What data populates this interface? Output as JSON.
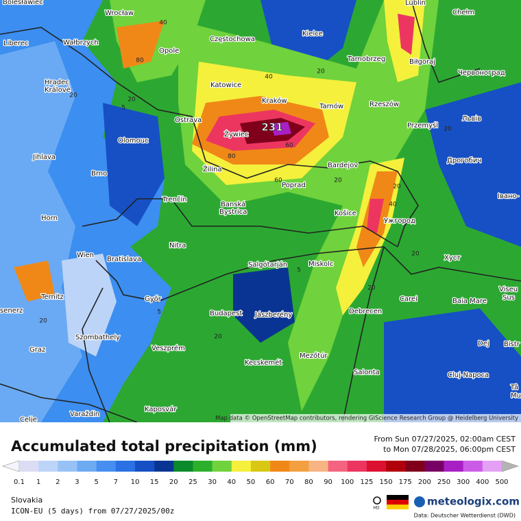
{
  "map": {
    "cities": [
      "Bolesławiec",
      "Wrocław",
      "Lublin",
      "Chełm",
      "Liberec",
      "Wałbrzych",
      "Opole",
      "Częstochowa",
      "Kielce",
      "Tarnobrzeg",
      "Biłgoraj",
      "Червоноград",
      "Hradec",
      "Králové",
      "Katowice",
      "Kraków",
      "Tarnów",
      "Rzeszów",
      "Przemyśl",
      "Львів",
      "Ostrava",
      "Olomouc",
      "Żywiec",
      "Jihlava",
      "Дрогобич",
      "Bardejov",
      "Brno",
      "Žilina",
      "Poprad",
      "Trenčín",
      "Banská",
      "Bystrica",
      "Košice",
      "Ужгород",
      "Івано-",
      "Horn",
      "Nitra",
      "Wien",
      "Bratislava",
      "Salgótarján",
      "Miskolc",
      "Хуст",
      "Ternitz",
      "Győr",
      "Carei",
      "Baia Mare",
      "Viseu",
      "Sus",
      "Budapest",
      "Jászberény",
      "Debrecen",
      "Szombathely",
      "Dej",
      "Bistr",
      "Veszprém",
      "Graz",
      "Mezőtúr",
      "Kecskemét",
      "Salonta",
      "Cluj-Napoca",
      "Tâ",
      "Mu",
      "Kaposvár",
      "Varaždin",
      "Celje",
      "senerz"
    ],
    "max_label": 231,
    "contour_labels": [
      40,
      80,
      20,
      5,
      20,
      60,
      40,
      20,
      80,
      60,
      20,
      20,
      40,
      20,
      5,
      20,
      20,
      5,
      20,
      20
    ],
    "attribution": "Map data © OpenStreetMap contributors, rendering GIScience Research Group @ Heidelberg University"
  },
  "footer": {
    "title": "Accumulated total precipitation (mm)",
    "period_from": "From Sun 07/27/2025, 02:00am CEST",
    "period_to": "to Mon 07/28/2025, 06:00pm CEST",
    "region": "Slovakia",
    "model": "ICON-EU (5 days) from 07/27/2025/00z",
    "brand": "meteologix.com",
    "hd": "HD",
    "source": "Data: Deutscher Wetterdienst (DWD)"
  },
  "legend": {
    "values": [
      0.1,
      1,
      2,
      3,
      5,
      7,
      10,
      15,
      20,
      25,
      30,
      40,
      50,
      60,
      70,
      80,
      90,
      100,
      125,
      150,
      175,
      200,
      250,
      300,
      400,
      500
    ],
    "under_color": "#f4f4fc",
    "over_color": "#b4b4b4",
    "colors": [
      "#dcdcf4",
      "#bcd4f8",
      "#96c2f6",
      "#6eaaf2",
      "#468ef0",
      "#2a72e4",
      "#1650c4",
      "#0a3494",
      "#0a8a2a",
      "#2cb02c",
      "#70d23c",
      "#f4f03c",
      "#d8c814",
      "#f08818",
      "#f4a040",
      "#f8b482",
      "#f46480",
      "#ec3660",
      "#dc1030",
      "#b0000c",
      "#80001c",
      "#780064",
      "#a820c4",
      "#cc5ce8",
      "#e4a0f4"
    ]
  }
}
